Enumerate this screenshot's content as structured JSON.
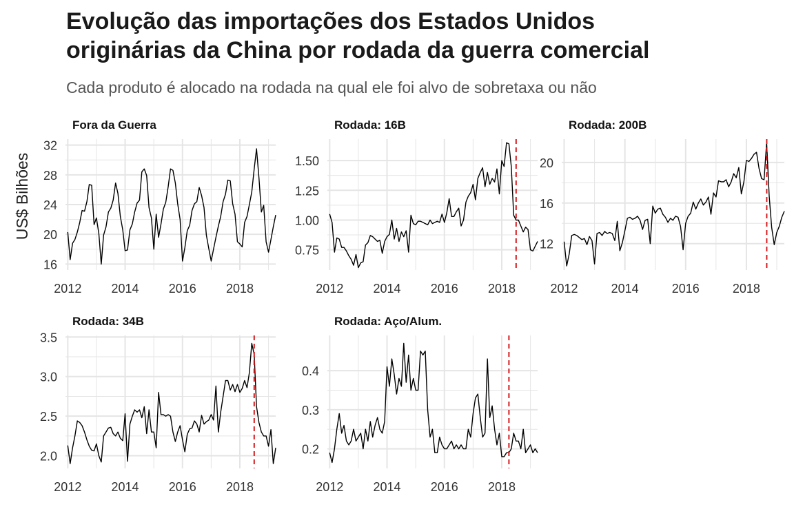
{
  "title_lines": [
    "Evolução das importações dos Estados Unidos",
    "originárias da China por rodada da guerra comercial"
  ],
  "subtitle": "Cada produto é alocado na rodada na qual ele foi alvo de sobretaxa ou não",
  "colors": {
    "line": "#000000",
    "vline": "#d7191c",
    "grid": "#e5e5e5"
  },
  "chart_data": {
    "type": "line",
    "ylabel": "US$ Bilhões",
    "x_ticks": [
      "2012",
      "2014",
      "2016",
      "2018"
    ],
    "panels": [
      {
        "title": "Fora da Guerra",
        "x_range": [
          2011.92,
          2019.25
        ],
        "ylim": [
          15.2,
          32.8
        ],
        "y_ticks": [
          16,
          20,
          24,
          28,
          32
        ],
        "y_tick_labels": [
          "16",
          "20",
          "24",
          "28",
          "32"
        ],
        "vline": null,
        "x": [
          2012.0,
          2012.083,
          2012.167,
          2012.25,
          2012.333,
          2012.417,
          2012.5,
          2012.583,
          2012.667,
          2012.75,
          2012.833,
          2012.917,
          2013.0,
          2013.083,
          2013.167,
          2013.25,
          2013.333,
          2013.417,
          2013.5,
          2013.583,
          2013.667,
          2013.75,
          2013.833,
          2013.917,
          2014.0,
          2014.083,
          2014.167,
          2014.25,
          2014.333,
          2014.417,
          2014.5,
          2014.583,
          2014.667,
          2014.75,
          2014.833,
          2014.917,
          2015.0,
          2015.083,
          2015.167,
          2015.25,
          2015.333,
          2015.417,
          2015.5,
          2015.583,
          2015.667,
          2015.75,
          2015.833,
          2015.917,
          2016.0,
          2016.083,
          2016.167,
          2016.25,
          2016.333,
          2016.417,
          2016.5,
          2016.583,
          2016.667,
          2016.75,
          2016.833,
          2016.917,
          2017.0,
          2017.083,
          2017.167,
          2017.25,
          2017.333,
          2017.417,
          2017.5,
          2017.583,
          2017.667,
          2017.75,
          2017.833,
          2017.917,
          2018.0,
          2018.083,
          2018.167,
          2018.25,
          2018.333,
          2018.417,
          2018.5,
          2018.583,
          2018.667,
          2018.75,
          2018.833,
          2018.917,
          2019.0,
          2019.083,
          2019.167,
          2019.25
        ],
        "values": [
          20.3,
          16.6,
          18.8,
          19.3,
          20.3,
          21.6,
          23.2,
          23.1,
          24.4,
          26.7,
          26.6,
          21.3,
          22.2,
          20.1,
          16.0,
          19.9,
          21.0,
          23.0,
          23.5,
          24.6,
          26.9,
          25.5,
          22.4,
          20.6,
          17.8,
          17.9,
          20.6,
          21.4,
          23.0,
          24.2,
          24.6,
          28.4,
          28.8,
          27.9,
          23.6,
          22.2,
          18.0,
          22.7,
          19.6,
          21.4,
          23.4,
          24.3,
          26.4,
          28.8,
          28.6,
          26.9,
          24.1,
          22.0,
          16.4,
          18.2,
          20.5,
          21.2,
          23.2,
          24.1,
          24.4,
          26.3,
          25.2,
          23.6,
          19.9,
          18.1,
          16.4,
          18.0,
          19.6,
          21.1,
          22.4,
          24.4,
          25.4,
          27.3,
          27.2,
          24.1,
          22.7,
          19.0,
          18.7,
          18.3,
          21.6,
          22.4,
          24.0,
          25.7,
          28.8,
          31.5,
          27.6,
          23.0,
          23.9,
          19.0,
          17.6,
          19.3,
          21.0,
          22.6
        ]
      },
      {
        "title": "Rodada: 16B",
        "x_range": [
          2011.92,
          2019.25
        ],
        "ylim": [
          0.58,
          1.68
        ],
        "y_ticks": [
          0.75,
          1.0,
          1.25,
          1.5
        ],
        "y_tick_labels": [
          "0.75",
          "1.00",
          "1.25",
          "1.50"
        ],
        "vline": 2018.5,
        "x": [
          2012.0,
          2012.083,
          2012.167,
          2012.25,
          2012.333,
          2012.417,
          2012.5,
          2012.583,
          2012.667,
          2012.75,
          2012.833,
          2012.917,
          2013.0,
          2013.083,
          2013.167,
          2013.25,
          2013.333,
          2013.417,
          2013.5,
          2013.583,
          2013.667,
          2013.75,
          2013.833,
          2013.917,
          2014.0,
          2014.083,
          2014.167,
          2014.25,
          2014.333,
          2014.417,
          2014.5,
          2014.583,
          2014.667,
          2014.75,
          2014.833,
          2014.917,
          2015.0,
          2015.083,
          2015.167,
          2015.25,
          2015.333,
          2015.417,
          2015.5,
          2015.583,
          2015.667,
          2015.75,
          2015.833,
          2015.917,
          2016.0,
          2016.083,
          2016.167,
          2016.25,
          2016.333,
          2016.417,
          2016.5,
          2016.583,
          2016.667,
          2016.75,
          2016.833,
          2016.917,
          2017.0,
          2017.083,
          2017.167,
          2017.25,
          2017.333,
          2017.417,
          2017.5,
          2017.583,
          2017.667,
          2017.75,
          2017.833,
          2017.917,
          2018.0,
          2018.083,
          2018.167,
          2018.25,
          2018.333,
          2018.417,
          2018.5,
          2018.583,
          2018.667,
          2018.75,
          2018.833,
          2018.917,
          2019.0,
          2019.083,
          2019.167,
          2019.25
        ],
        "values": [
          1.05,
          0.98,
          0.73,
          0.85,
          0.84,
          0.77,
          0.77,
          0.74,
          0.7,
          0.67,
          0.62,
          0.71,
          0.6,
          0.64,
          0.65,
          0.79,
          0.81,
          0.87,
          0.86,
          0.84,
          0.82,
          0.83,
          0.72,
          0.82,
          0.86,
          0.88,
          1.0,
          0.84,
          0.93,
          0.82,
          0.9,
          0.86,
          0.91,
          0.73,
          1.04,
          0.97,
          0.96,
          0.99,
          0.99,
          0.98,
          0.97,
          0.96,
          1.0,
          0.97,
          0.98,
          0.99,
          0.98,
          1.05,
          0.98,
          1.06,
          1.18,
          1.03,
          1.03,
          1.07,
          1.1,
          0.95,
          1.0,
          1.15,
          1.2,
          1.23,
          1.3,
          1.17,
          1.35,
          1.4,
          1.44,
          1.28,
          1.4,
          1.3,
          1.35,
          1.32,
          1.43,
          1.22,
          1.5,
          1.45,
          1.65,
          1.64,
          1.45,
          1.04,
          1.0,
          1.0,
          0.95,
          0.9,
          0.94,
          0.92,
          0.75,
          0.74,
          0.78,
          0.82
        ]
      },
      {
        "title": "Rodada: 200B",
        "x_range": [
          2011.92,
          2019.25
        ],
        "ylim": [
          9.4,
          22.3
        ],
        "y_ticks": [
          12,
          16,
          20
        ],
        "y_tick_labels": [
          "12",
          "16",
          "20"
        ],
        "vline": 2018.67,
        "x": [
          2012.0,
          2012.083,
          2012.167,
          2012.25,
          2012.333,
          2012.417,
          2012.5,
          2012.583,
          2012.667,
          2012.75,
          2012.833,
          2012.917,
          2013.0,
          2013.083,
          2013.167,
          2013.25,
          2013.333,
          2013.417,
          2013.5,
          2013.583,
          2013.667,
          2013.75,
          2013.833,
          2013.917,
          2014.0,
          2014.083,
          2014.167,
          2014.25,
          2014.333,
          2014.417,
          2014.5,
          2014.583,
          2014.667,
          2014.75,
          2014.833,
          2014.917,
          2015.0,
          2015.083,
          2015.167,
          2015.25,
          2015.333,
          2015.417,
          2015.5,
          2015.583,
          2015.667,
          2015.75,
          2015.833,
          2015.917,
          2016.0,
          2016.083,
          2016.167,
          2016.25,
          2016.333,
          2016.417,
          2016.5,
          2016.583,
          2016.667,
          2016.75,
          2016.833,
          2016.917,
          2017.0,
          2017.083,
          2017.167,
          2017.25,
          2017.333,
          2017.417,
          2017.5,
          2017.583,
          2017.667,
          2017.75,
          2017.833,
          2017.917,
          2018.0,
          2018.083,
          2018.167,
          2018.25,
          2018.333,
          2018.417,
          2018.5,
          2018.583,
          2018.667,
          2018.75,
          2018.833,
          2018.917,
          2019.0,
          2019.083,
          2019.167,
          2019.25
        ],
        "values": [
          12.2,
          9.8,
          11.0,
          12.8,
          12.9,
          12.8,
          12.6,
          12.4,
          12.5,
          11.9,
          12.7,
          12.3,
          10.0,
          13.0,
          13.1,
          12.8,
          13.2,
          13.0,
          13.1,
          13.0,
          12.3,
          14.2,
          11.3,
          12.1,
          13.3,
          14.5,
          14.6,
          14.4,
          14.5,
          14.7,
          14.3,
          13.4,
          14.3,
          14.4,
          12.0,
          15.7,
          15.0,
          15.4,
          15.5,
          14.9,
          14.6,
          14.1,
          14.5,
          14.3,
          14.7,
          14.6,
          13.7,
          11.4,
          14.0,
          14.7,
          15.0,
          16.1,
          15.4,
          16.0,
          16.4,
          15.8,
          16.1,
          16.6,
          14.9,
          17.0,
          16.6,
          18.2,
          18.1,
          18.1,
          18.3,
          17.6,
          18.1,
          18.9,
          18.5,
          19.5,
          16.9,
          18.1,
          20.2,
          20.1,
          20.4,
          20.8,
          21.0,
          19.4,
          18.4,
          18.3,
          22.0,
          16.7,
          13.6,
          11.9,
          13.1,
          13.7,
          14.6,
          15.2
        ]
      },
      {
        "title": "Rodada: 34B",
        "x_range": [
          2011.92,
          2019.25
        ],
        "ylim": [
          1.84,
          3.52
        ],
        "y_ticks": [
          2.0,
          2.5,
          3.0,
          3.5
        ],
        "y_tick_labels": [
          "2.0",
          "2.5",
          "3.0",
          "3.5"
        ],
        "vline": 2018.5,
        "x": [
          2012.0,
          2012.083,
          2012.167,
          2012.25,
          2012.333,
          2012.417,
          2012.5,
          2012.583,
          2012.667,
          2012.75,
          2012.833,
          2012.917,
          2013.0,
          2013.083,
          2013.167,
          2013.25,
          2013.333,
          2013.417,
          2013.5,
          2013.583,
          2013.667,
          2013.75,
          2013.833,
          2013.917,
          2014.0,
          2014.083,
          2014.167,
          2014.25,
          2014.333,
          2014.417,
          2014.5,
          2014.583,
          2014.667,
          2014.75,
          2014.833,
          2014.917,
          2015.0,
          2015.083,
          2015.167,
          2015.25,
          2015.333,
          2015.417,
          2015.5,
          2015.583,
          2015.667,
          2015.75,
          2015.833,
          2015.917,
          2016.0,
          2016.083,
          2016.167,
          2016.25,
          2016.333,
          2016.417,
          2016.5,
          2016.583,
          2016.667,
          2016.75,
          2016.833,
          2016.917,
          2017.0,
          2017.083,
          2017.167,
          2017.25,
          2017.333,
          2017.417,
          2017.5,
          2017.583,
          2017.667,
          2017.75,
          2017.833,
          2017.917,
          2018.0,
          2018.083,
          2018.167,
          2018.25,
          2018.333,
          2018.417,
          2018.5,
          2018.583,
          2018.667,
          2018.75,
          2018.833,
          2018.917,
          2019.0,
          2019.083,
          2019.167,
          2019.25
        ],
        "values": [
          2.13,
          1.9,
          2.1,
          2.25,
          2.44,
          2.42,
          2.38,
          2.3,
          2.2,
          2.12,
          2.07,
          2.06,
          2.15,
          2.0,
          1.92,
          2.25,
          2.3,
          2.35,
          2.36,
          2.28,
          2.25,
          2.3,
          2.22,
          2.19,
          2.53,
          1.93,
          2.4,
          2.5,
          2.58,
          2.55,
          2.58,
          2.48,
          2.62,
          2.28,
          2.58,
          2.3,
          2.3,
          2.1,
          2.8,
          2.52,
          2.52,
          2.5,
          2.52,
          2.5,
          2.3,
          2.18,
          2.3,
          2.38,
          2.2,
          2.05,
          2.27,
          2.34,
          2.35,
          2.44,
          2.4,
          2.3,
          2.51,
          2.4,
          2.43,
          2.45,
          2.52,
          2.45,
          2.88,
          2.3,
          2.55,
          2.75,
          2.95,
          2.95,
          2.83,
          2.9,
          2.81,
          2.9,
          2.8,
          2.85,
          2.95,
          2.86,
          3.05,
          3.42,
          3.28,
          2.62,
          2.42,
          2.3,
          2.25,
          2.25,
          2.12,
          2.33,
          1.9,
          2.1
        ]
      },
      {
        "title": "Rodada: Aço/Alum.",
        "x_range": [
          2011.92,
          2019.25
        ],
        "ylim": [
          0.15,
          0.49
        ],
        "y_ticks": [
          0.2,
          0.3,
          0.4
        ],
        "y_tick_labels": [
          "0.2",
          "0.3",
          "0.4"
        ],
        "vline": 2018.25,
        "x": [
          2012.0,
          2012.083,
          2012.167,
          2012.25,
          2012.333,
          2012.417,
          2012.5,
          2012.583,
          2012.667,
          2012.75,
          2012.833,
          2012.917,
          2013.0,
          2013.083,
          2013.167,
          2013.25,
          2013.333,
          2013.417,
          2013.5,
          2013.583,
          2013.667,
          2013.75,
          2013.833,
          2013.917,
          2014.0,
          2014.083,
          2014.167,
          2014.25,
          2014.333,
          2014.417,
          2014.5,
          2014.583,
          2014.667,
          2014.75,
          2014.833,
          2014.917,
          2015.0,
          2015.083,
          2015.167,
          2015.25,
          2015.333,
          2015.417,
          2015.5,
          2015.583,
          2015.667,
          2015.75,
          2015.833,
          2015.917,
          2016.0,
          2016.083,
          2016.167,
          2016.25,
          2016.333,
          2016.417,
          2016.5,
          2016.583,
          2016.667,
          2016.75,
          2016.833,
          2016.917,
          2017.0,
          2017.083,
          2017.167,
          2017.25,
          2017.333,
          2017.417,
          2017.5,
          2017.583,
          2017.667,
          2017.75,
          2017.833,
          2017.917,
          2018.0,
          2018.083,
          2018.167,
          2018.25,
          2018.333,
          2018.417,
          2018.5,
          2018.583,
          2018.667,
          2018.75,
          2018.833,
          2018.917,
          2019.0,
          2019.083,
          2019.167,
          2019.25
        ],
        "values": [
          0.19,
          0.165,
          0.2,
          0.25,
          0.29,
          0.24,
          0.26,
          0.22,
          0.21,
          0.22,
          0.25,
          0.22,
          0.23,
          0.24,
          0.2,
          0.25,
          0.22,
          0.27,
          0.23,
          0.26,
          0.28,
          0.25,
          0.24,
          0.27,
          0.41,
          0.36,
          0.43,
          0.39,
          0.34,
          0.38,
          0.36,
          0.47,
          0.37,
          0.44,
          0.35,
          0.38,
          0.35,
          0.35,
          0.45,
          0.44,
          0.45,
          0.3,
          0.23,
          0.25,
          0.19,
          0.19,
          0.23,
          0.21,
          0.2,
          0.2,
          0.21,
          0.22,
          0.2,
          0.21,
          0.2,
          0.21,
          0.2,
          0.2,
          0.25,
          0.23,
          0.29,
          0.33,
          0.34,
          0.28,
          0.23,
          0.24,
          0.43,
          0.28,
          0.31,
          0.25,
          0.21,
          0.24,
          0.18,
          0.18,
          0.19,
          0.19,
          0.2,
          0.24,
          0.22,
          0.22,
          0.2,
          0.25,
          0.19,
          0.2,
          0.21,
          0.19,
          0.2,
          0.19
        ]
      }
    ]
  }
}
